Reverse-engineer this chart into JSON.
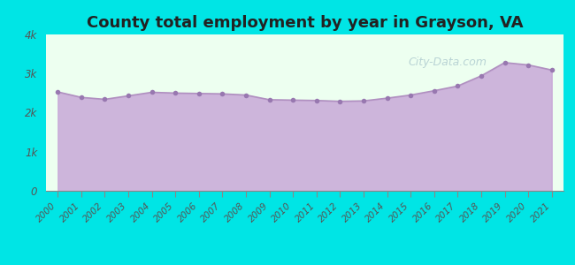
{
  "title": "County total employment by year in Grayson, VA",
  "years": [
    2000,
    2001,
    2002,
    2003,
    2004,
    2005,
    2006,
    2007,
    2008,
    2009,
    2010,
    2011,
    2012,
    2013,
    2014,
    2015,
    2016,
    2017,
    2018,
    2019,
    2020,
    2021
  ],
  "values": [
    2530,
    2390,
    2340,
    2430,
    2520,
    2500,
    2490,
    2480,
    2450,
    2330,
    2320,
    2310,
    2290,
    2300,
    2370,
    2450,
    2560,
    2680,
    2940,
    3280,
    3220,
    3090
  ],
  "line_color": "#b090c0",
  "fill_color": "#c8a8d8",
  "fill_alpha": 0.85,
  "marker_color": "#9878b0",
  "bg_color": "#edfff0",
  "outer_bg": "#00e5e5",
  "title_fontsize": 13,
  "ylim": [
    0,
    4000
  ],
  "yticks": [
    0,
    1000,
    2000,
    3000,
    4000
  ],
  "ytick_labels": [
    "0",
    "1k",
    "2k",
    "3k",
    "4k"
  ],
  "watermark": "City-Data.com"
}
